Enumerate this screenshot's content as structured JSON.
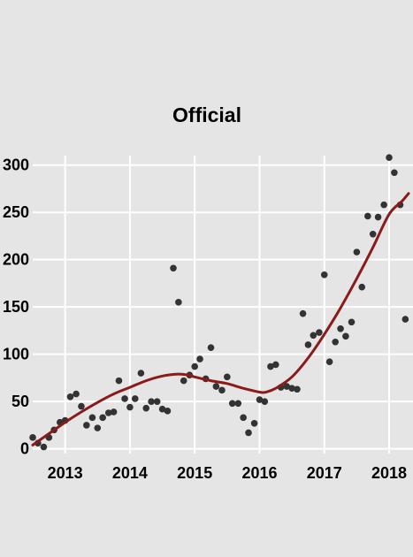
{
  "chart_data": {
    "type": "scatter",
    "title": "Official",
    "xlabel": "",
    "ylabel": "",
    "xlim": [
      2012.5,
      2018.3
    ],
    "ylim": [
      -5,
      310
    ],
    "x_ticks": [
      {
        "value": 2013,
        "label": "2013"
      },
      {
        "value": 2014,
        "label": "2014"
      },
      {
        "value": 2015,
        "label": "2015"
      },
      {
        "value": 2016,
        "label": "2016"
      },
      {
        "value": 2017,
        "label": "2017"
      },
      {
        "value": 2018,
        "label": "2018"
      }
    ],
    "y_ticks": [
      {
        "value": 0,
        "label": "0"
      },
      {
        "value": 50,
        "label": "50"
      },
      {
        "value": 100,
        "label": "100"
      },
      {
        "value": 150,
        "label": "150"
      },
      {
        "value": 200,
        "label": "200"
      },
      {
        "value": 250,
        "label": "250"
      },
      {
        "value": 300,
        "label": "300"
      }
    ],
    "grid": true,
    "colors": {
      "background": "#e5e5e5",
      "grid": "#ffffff",
      "points": "#333333",
      "trend": "#8b1a1a"
    },
    "series": [
      {
        "kind": "points",
        "x": [
          2012.5,
          2012.58,
          2012.67,
          2012.75,
          2012.83,
          2012.92,
          2013.0,
          2013.08,
          2013.17,
          2013.25,
          2013.33,
          2013.42,
          2013.5,
          2013.58,
          2013.67,
          2013.75,
          2013.83,
          2013.92,
          2014.0,
          2014.08,
          2014.17,
          2014.25,
          2014.33,
          2014.42,
          2014.5,
          2014.58,
          2014.67,
          2014.75,
          2014.83,
          2014.92,
          2015.0,
          2015.08,
          2015.17,
          2015.25,
          2015.33,
          2015.42,
          2015.5,
          2015.58,
          2015.67,
          2015.75,
          2015.83,
          2015.92,
          2016.0,
          2016.08,
          2016.17,
          2016.25,
          2016.33,
          2016.42,
          2016.5,
          2016.58,
          2016.67,
          2016.75,
          2016.83,
          2016.92,
          2017.0,
          2017.08,
          2017.17,
          2017.25,
          2017.33,
          2017.42,
          2017.5,
          2017.58,
          2017.67,
          2017.75,
          2017.83,
          2017.92,
          2018.0,
          2018.08,
          2018.17,
          2018.25
        ],
        "y": [
          12,
          6,
          2,
          12,
          20,
          28,
          30,
          55,
          58,
          45,
          25,
          33,
          22,
          33,
          38,
          39,
          72,
          53,
          44,
          53,
          80,
          43,
          50,
          50,
          42,
          40,
          191,
          155,
          72,
          78,
          87,
          95,
          74,
          107,
          66,
          62,
          76,
          48,
          48,
          33,
          17,
          27,
          52,
          50,
          87,
          89,
          65,
          66,
          64,
          63,
          143,
          110,
          120,
          123,
          184,
          92,
          113,
          127,
          119,
          134,
          208,
          171,
          246,
          227,
          245,
          258,
          308,
          292,
          258,
          137
        ]
      },
      {
        "kind": "trend",
        "x": [
          2012.5,
          2012.75,
          2013.0,
          2013.25,
          2013.5,
          2013.75,
          2014.0,
          2014.25,
          2014.5,
          2014.75,
          2014.9,
          2015.0,
          2015.25,
          2015.5,
          2015.75,
          2016.0,
          2016.1,
          2016.25,
          2016.5,
          2016.75,
          2017.0,
          2017.25,
          2017.5,
          2017.75,
          2018.0,
          2018.2,
          2018.3
        ],
        "y": [
          4,
          16,
          28,
          39,
          49,
          58,
          65,
          72,
          77,
          79,
          78,
          76,
          72,
          69,
          64,
          60,
          60,
          64,
          76,
          96,
          121,
          149,
          180,
          213,
          248,
          262,
          270
        ]
      }
    ]
  }
}
